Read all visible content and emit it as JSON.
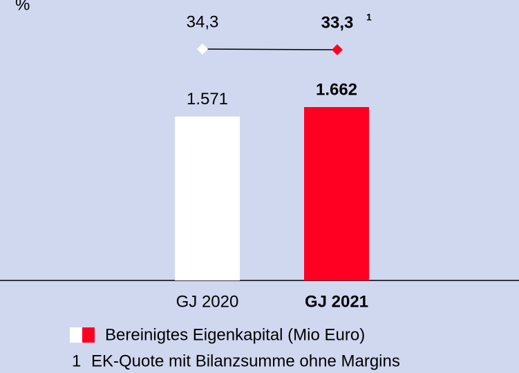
{
  "chart_data": {
    "type": "bar",
    "unit_label": "%",
    "categories": [
      "GJ 2020",
      "GJ 2021"
    ],
    "highlight": 1,
    "series": [
      {
        "name": "Bereinigtes Eigenkapital (Mio Euro)",
        "type": "bar",
        "colors": [
          "#ffffff",
          "#ff0022"
        ],
        "values": [
          1571,
          1662
        ],
        "value_labels": [
          "1.571",
          "1.662"
        ]
      },
      {
        "type": "line",
        "colors": [
          "#ffffff",
          "#ff0022"
        ],
        "line_color": "#000000",
        "values": [
          34.3,
          33.3
        ],
        "value_labels": [
          "34,3",
          "33,3"
        ],
        "note_ref": "1"
      }
    ],
    "footnote": {
      "marker": "1",
      "text": "EK-Quote mit Bilanzsumme ohne Margins"
    }
  }
}
